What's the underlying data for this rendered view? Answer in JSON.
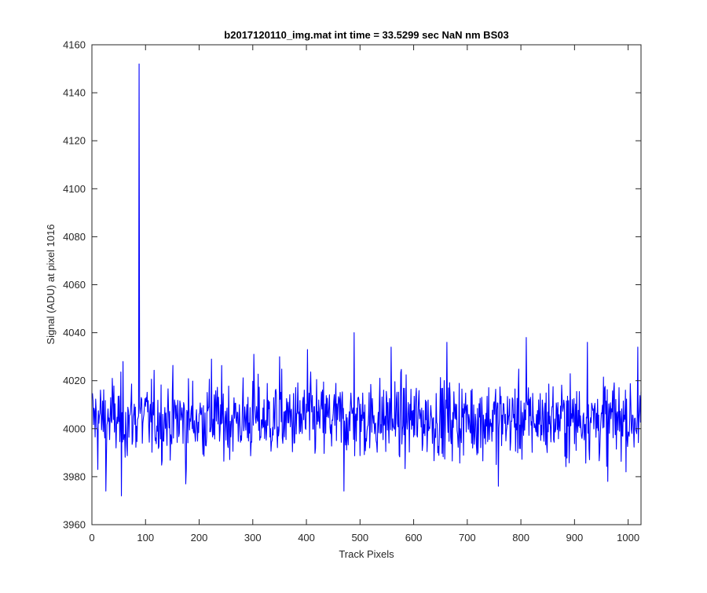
{
  "chart_data": {
    "type": "line",
    "title": "b2017120110_img.mat int time = 33.5299 sec  NaN nm BS03",
    "xlabel": "Track Pixels",
    "ylabel": "Signal (ADU) at pixel 1016",
    "xlim": [
      0,
      1024
    ],
    "ylim": [
      3960,
      4160
    ],
    "xticks": [
      0,
      100,
      200,
      300,
      400,
      500,
      600,
      700,
      800,
      900,
      1000
    ],
    "yticks": [
      3960,
      3980,
      4000,
      4020,
      4040,
      4060,
      4080,
      4100,
      4120,
      4140,
      4160
    ],
    "grid": false,
    "box": true,
    "series": [
      {
        "color": "#0000ff",
        "n_points": 1024,
        "baseline": 4004,
        "noise_amplitude": 9,
        "features": [
          {
            "x": 11,
            "y": 3983
          },
          {
            "x": 26,
            "y": 3974
          },
          {
            "x": 38,
            "y": 4021
          },
          {
            "x": 55,
            "y": 3972
          },
          {
            "x": 58,
            "y": 4028
          },
          {
            "x": 88,
            "y": 4152
          },
          {
            "x": 175,
            "y": 3977
          },
          {
            "x": 223,
            "y": 4029
          },
          {
            "x": 302,
            "y": 4031
          },
          {
            "x": 350,
            "y": 4030
          },
          {
            "x": 402,
            "y": 4033
          },
          {
            "x": 470,
            "y": 3974
          },
          {
            "x": 489,
            "y": 4040
          },
          {
            "x": 558,
            "y": 4034
          },
          {
            "x": 662,
            "y": 4036
          },
          {
            "x": 758,
            "y": 3976
          },
          {
            "x": 810,
            "y": 4038
          },
          {
            "x": 924,
            "y": 4036
          },
          {
            "x": 962,
            "y": 3978
          },
          {
            "x": 1018,
            "y": 4034
          }
        ]
      }
    ]
  }
}
